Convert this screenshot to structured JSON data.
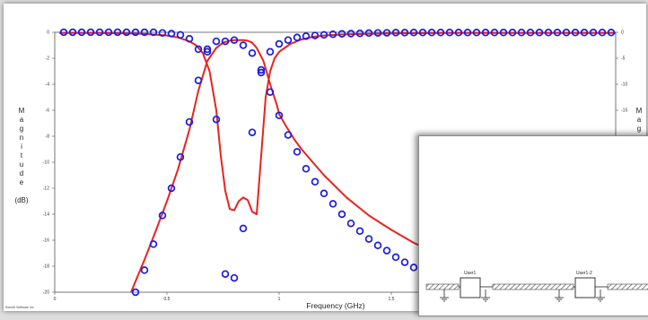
{
  "chart_data": {
    "type": "line",
    "title": "",
    "xlabel": "Frequency (GHz)",
    "ylabel": "Magnitude (dB)",
    "xlim": [
      0,
      2.5
    ],
    "ylim": [
      -20,
      0
    ],
    "y2lim": [
      -50,
      0
    ],
    "grid": "none",
    "xticks": [
      "0",
      "0.5",
      "1",
      "1.5"
    ],
    "yticks": [
      "0",
      "-2",
      "-4",
      "-6",
      "-8",
      "-10",
      "-12",
      "-14",
      "-16",
      "-18",
      "-20"
    ],
    "y2ticks": [
      "0",
      "-5",
      "-10",
      "-15"
    ],
    "ylabel_left_letters": [
      "M",
      "a",
      "g",
      "n",
      "i",
      "t",
      "u",
      "d",
      "e",
      "(dB)"
    ],
    "ylabel_right_letters": [
      "M",
      "a",
      "g"
    ],
    "credit": "Sonnet Software Inc.",
    "series": [
      {
        "color": "#e8231e",
        "style": "line",
        "x": [
          0.34,
          0.4,
          0.45,
          0.5,
          0.55,
          0.6,
          0.64,
          0.68,
          0.72,
          0.75,
          0.78,
          0.8,
          0.82,
          0.84,
          0.86,
          0.88,
          0.9,
          0.93,
          0.96,
          0.99,
          1.0,
          1.03,
          1.07,
          1.1,
          1.15,
          1.2,
          1.3,
          1.4,
          1.5,
          1.6,
          1.7,
          1.75
        ],
        "y": [
          -20,
          -17.5,
          -15.3,
          -13,
          -10.5,
          -7.5,
          -4.5,
          -2.2,
          -1.2,
          -0.8,
          -0.65,
          -0.6,
          -0.6,
          -0.6,
          -0.65,
          -0.8,
          -1.2,
          -2.2,
          -4,
          -5.6,
          -6.3,
          -7.2,
          -8.3,
          -9,
          -10,
          -11,
          -12.7,
          -14.1,
          -15.2,
          -16.2,
          -17,
          -17.3
        ]
      },
      {
        "color": "#e8231e",
        "style": "line",
        "x": [
          0.02,
          0.2,
          0.4,
          0.5,
          0.55,
          0.6,
          0.63,
          0.66,
          0.69,
          0.72,
          0.74,
          0.76,
          0.78,
          0.8,
          0.82,
          0.84,
          0.86,
          0.88,
          0.9,
          0.92,
          0.94,
          0.96,
          0.98,
          1.0,
          1.05,
          1.1,
          1.15,
          1.2,
          1.3,
          1.5,
          1.75,
          2.5
        ],
        "y": [
          -0.05,
          -0.05,
          -0.12,
          -0.25,
          -0.4,
          -0.7,
          -1.0,
          -1.6,
          -3.0,
          -6.0,
          -9.5,
          -12.2,
          -13.6,
          -13.7,
          -13.0,
          -12.7,
          -12.9,
          -13.8,
          -14.0,
          -9.5,
          -5.0,
          -3.0,
          -2.0,
          -1.5,
          -0.9,
          -0.55,
          -0.35,
          -0.25,
          -0.15,
          -0.08,
          -0.05,
          -0.05
        ]
      },
      {
        "color": "#1a1ae6",
        "style": "markers",
        "x": [
          0.04,
          0.08,
          0.12,
          0.16,
          0.2,
          0.24,
          0.28,
          0.32,
          0.36,
          0.4,
          0.44,
          0.48,
          0.52,
          0.56,
          0.6,
          0.64,
          0.68,
          0.72,
          0.76,
          0.8,
          0.84,
          0.88,
          0.92,
          0.96,
          1.0,
          1.04,
          1.08,
          1.12,
          1.16,
          1.2,
          1.24,
          1.28,
          1.32,
          1.36,
          1.4,
          1.44,
          1.48,
          1.52,
          1.56,
          1.6,
          1.64,
          1.68,
          1.72,
          1.76,
          1.8,
          1.84,
          1.88,
          1.92,
          1.96,
          2.0,
          2.04,
          2.08,
          2.12,
          2.16,
          2.2,
          2.24,
          2.28,
          2.32,
          2.36,
          2.4,
          2.44,
          2.48
        ],
        "y": [
          0,
          0,
          0,
          0,
          0,
          0,
          0,
          0,
          0,
          0,
          0,
          -0.05,
          -0.1,
          -0.2,
          -0.5,
          -1.3,
          -1.3,
          -0.7,
          -0.7,
          -0.6,
          -1.0,
          -1.6,
          -2.9,
          -1.5,
          -0.9,
          -0.6,
          -0.4,
          -0.3,
          -0.25,
          -0.2,
          -0.15,
          -0.12,
          -0.1,
          -0.08,
          -0.06,
          -0.05,
          -0.04,
          -0.03,
          -0.03,
          -0.02,
          -0.02,
          -0.02,
          -0.02,
          -0.02,
          -0.02,
          -0.02,
          -0.02,
          -0.02,
          -0.02,
          -0.02,
          -0.02,
          -0.02,
          -0.02,
          -0.02,
          -0.02,
          -0.02,
          -0.02,
          -0.02,
          -0.02,
          -0.02,
          -0.02,
          -0.02
        ]
      },
      {
        "color": "#1a1ae6",
        "style": "markers",
        "x": [
          0.36,
          0.4,
          0.44,
          0.48,
          0.52,
          0.56,
          0.6,
          0.64,
          0.68,
          0.72,
          0.76,
          0.8,
          0.84,
          0.88,
          0.92,
          0.96,
          1.0,
          1.04,
          1.08,
          1.12,
          1.16,
          1.2,
          1.24,
          1.28,
          1.32,
          1.36,
          1.4,
          1.44,
          1.48,
          1.52,
          1.56,
          1.6,
          1.64,
          1.68,
          1.72
        ],
        "y": [
          -20,
          -18.3,
          -16.3,
          -14.1,
          -12,
          -9.6,
          -6.9,
          -3.7,
          -1.5,
          -6.7,
          -18.6,
          -18.9,
          -15.1,
          -7.7,
          -3.1,
          -4.6,
          -6.4,
          -7.9,
          -9.2,
          -10.5,
          -11.5,
          -12.4,
          -13.2,
          -14,
          -14.7,
          -15.3,
          -15.9,
          -16.4,
          -16.8,
          -17.3,
          -17.7,
          -18.1,
          -18.4,
          -18.8,
          -19.1
        ]
      }
    ]
  },
  "inset": {
    "left_block_label": "User1",
    "right_block_label": "User1-2"
  }
}
